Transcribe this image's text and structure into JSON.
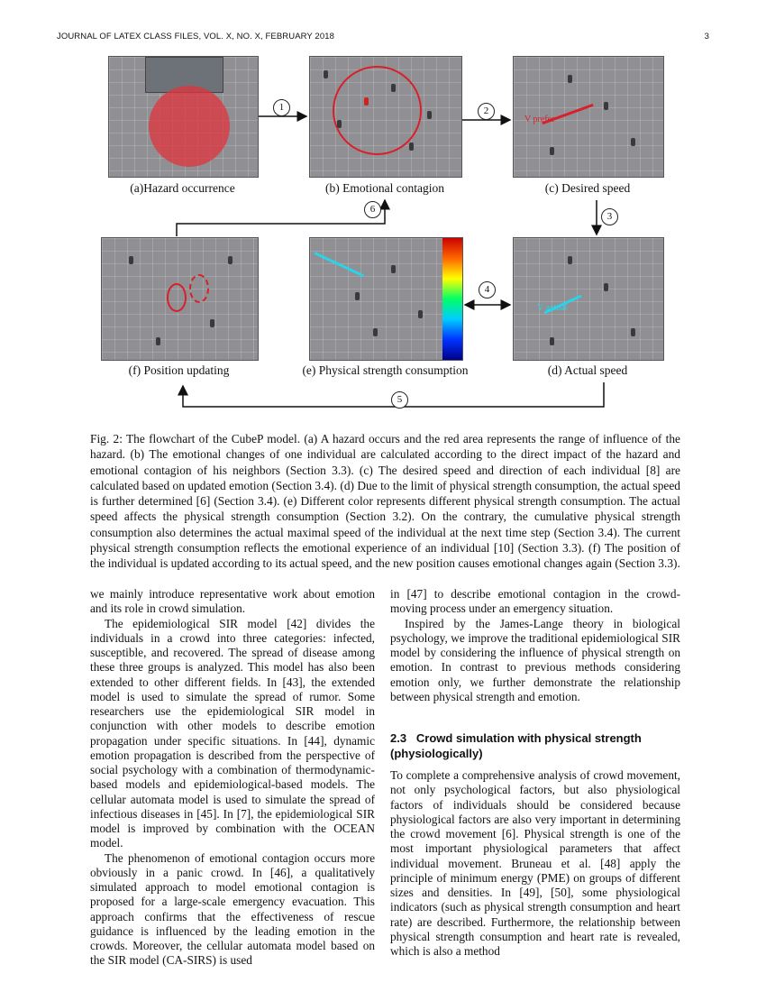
{
  "header": {
    "left": "JOURNAL OF LATEX CLASS FILES, VOL. X, NO. X, FEBRUARY 2018",
    "page": "3"
  },
  "figure": {
    "panels": [
      {
        "id": "a",
        "label": "(a)Hazard occurrence"
      },
      {
        "id": "b",
        "label": "(b) Emotional contagion"
      },
      {
        "id": "c",
        "label": "(c) Desired speed",
        "annotation": "V prefer"
      },
      {
        "id": "d",
        "label": "(d) Actual speed",
        "annotation": "V actual"
      },
      {
        "id": "e",
        "label": "(e) Physical strength consumption"
      },
      {
        "id": "f",
        "label": "(f) Position updating"
      }
    ],
    "steps": [
      "1",
      "2",
      "3",
      "4",
      "5",
      "6"
    ],
    "colors": {
      "hazard": "#e0343c",
      "colorbar": [
        "#cc0000",
        "#ff6600",
        "#ffff00",
        "#00ff66",
        "#00ccff",
        "#0033ff",
        "#00008b"
      ]
    }
  },
  "caption": "Fig. 2: The flowchart of the CubeP model. (a) A hazard occurs and the red area represents the range of influence of the hazard. (b) The emotional changes of one individual are calculated according to the direct impact of the hazard and emotional contagion of his neighbors (Section 3.3). (c) The desired speed and direction of each individual [8] are calculated based on updated emotion (Section 3.4). (d) Due to the limit of physical strength consumption, the actual speed is further determined [6] (Section 3.4). (e) Different color represents different physical strength consumption. The actual speed affects the physical strength consumption (Section 3.2). On the contrary, the cumulative physical strength consumption also determines the actual maximal speed of the individual at the next time step (Section 3.4). The current physical strength consumption reflects the emotional experience of an individual [10] (Section 3.3). (f) The position of the individual is updated according to its actual speed, and the new position causes emotional changes again (Section 3.3).",
  "left_column": [
    "we mainly introduce representative work about emotion and its role in crowd simulation.",
    "The epidemiological SIR model [42] divides the individuals in a crowd into three categories: infected, susceptible, and recovered. The spread of disease among these three groups is analyzed. This model has also been extended to other different fields. In [43], the extended model is used to simulate the spread of rumor. Some researchers use the epidemiological SIR model in conjunction with other models to describe emotion propagation under specific situations. In [44], dynamic emotion propagation is described from the perspective of social psychology with a combination of thermodynamic-based models and epidemiological-based models. The cellular automata model is used to simulate the spread of infectious diseases in [45]. In [7], the epidemiological SIR model is improved by combination with the OCEAN model.",
    "The phenomenon of emotional contagion occurs more obviously in a panic crowd. In [46], a qualitatively simulated approach to model emotional contagion is proposed for a large-scale emergency evacuation. This approach confirms that the effectiveness of rescue guidance is influenced by the leading emotion in the crowds. Moreover, the cellular automata model based on the SIR model (CA-SIRS) is used"
  ],
  "right_column": {
    "para1": "in [47] to describe emotional contagion in the crowd-moving process under an emergency situation.",
    "para2": "Inspired by the James-Lange theory in biological psychology, we improve the traditional epidemiological SIR model by considering the influence of physical strength on emotion. In contrast to previous methods considering emotion only, we further demonstrate the relationship between physical strength and emotion.",
    "section_heading": "2.3   Crowd simulation with physical strength (physiologically)",
    "para3": "To complete a comprehensive analysis of crowd movement, not only psychological factors, but also physiological factors of individuals should be considered because physiological factors are also very important in determining the crowd movement [6]. Physical strength is one of the most important physiological parameters that affect individual movement. Bruneau et al. [48] apply the principle of minimum energy (PME) on groups of different sizes and densities. In [49], [50], some physiological indicators (such as physical strength consumption and heart rate) are described. Furthermore, the relationship between physical strength consumption and heart rate is revealed, which is also a method"
  }
}
